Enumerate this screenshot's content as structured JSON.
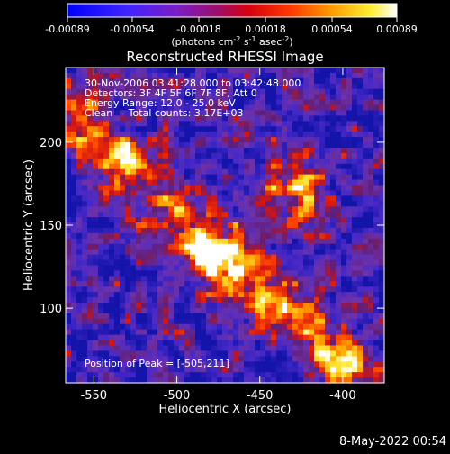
{
  "chart_data": {
    "type": "heatmap",
    "colormap": "rhessi-blue-purple-red-yellow-white",
    "colorbar": {
      "range": [
        -0.00089,
        0.00089
      ],
      "tick_labels": [
        "-0.00089",
        "-0.00054",
        "-0.00018",
        "0.00018",
        "0.00054",
        "0.00089"
      ],
      "units_prefix": "(photons cm",
      "units_sup1": "-2",
      "units_mid": " s",
      "units_sup2": "-1",
      "units_mid2": " asec",
      "units_sup3": "-2",
      "units_suffix": ")"
    },
    "title": "Reconstructed RHESSI Image",
    "xlabel": "Heliocentric X (arcsec)",
    "ylabel": "Heliocentric Y (arcsec)",
    "xlim": [
      -567,
      -375
    ],
    "ylim": [
      55,
      245
    ],
    "xticks": [
      -550,
      -500,
      -450,
      -400
    ],
    "xtick_labels": [
      "-550",
      "-500",
      "-450",
      "-400"
    ],
    "yticks": [
      100,
      150,
      200
    ],
    "ytick_labels": [
      "100",
      "150",
      "200"
    ],
    "annotations": [
      "30-Nov-2006 03:41:28.000 to 03:42:48.000",
      "Detectors: 3F 4F 5F 6F 7F 8F, Att 0",
      "Energy Range: 12.0 - 25.0 keV",
      "Clean     Total counts: 3.17E+03"
    ],
    "peak_label": "Position of Peak = [-505,211]",
    "peak_position": [
      -505,
      211
    ]
  },
  "footer": {
    "timestamp": "8-May-2022 00:54"
  }
}
